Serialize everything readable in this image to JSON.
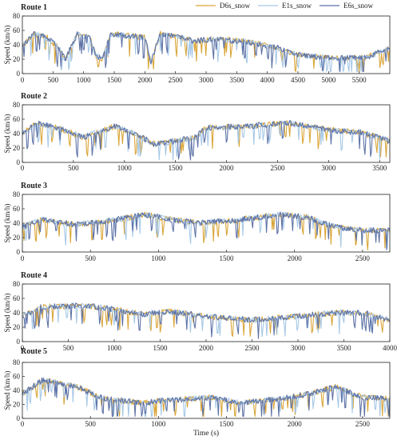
{
  "legend": {
    "placement": "top-right",
    "items": [
      {
        "name": "D6s_snow",
        "color": "#d9a538"
      },
      {
        "name": "E1s_snow",
        "color": "#a7c8e6"
      },
      {
        "name": "E6s_snow",
        "color": "#5d72a6"
      }
    ]
  },
  "xlabel": "Time (s)",
  "chart_data": [
    {
      "type": "line",
      "title": "Route 1",
      "ylabel": "Speed (km/h)",
      "xlim": [
        0,
        6000
      ],
      "ylim": [
        0,
        80
      ],
      "xticks": [
        0,
        500,
        1000,
        1500,
        2000,
        2500,
        3000,
        3500,
        4000,
        4500,
        5000,
        5500
      ],
      "yticks": [
        0,
        20,
        40,
        60,
        80
      ],
      "duration": 6000,
      "profile": [
        [
          0,
          40
        ],
        [
          200,
          55
        ],
        [
          400,
          50
        ],
        [
          600,
          35
        ],
        [
          700,
          20
        ],
        [
          900,
          55
        ],
        [
          1100,
          50
        ],
        [
          1200,
          25
        ],
        [
          1300,
          20
        ],
        [
          1450,
          55
        ],
        [
          2000,
          50
        ],
        [
          2100,
          15
        ],
        [
          2250,
          55
        ],
        [
          2600,
          50
        ],
        [
          2800,
          45
        ],
        [
          3100,
          48
        ],
        [
          3600,
          45
        ],
        [
          4200,
          35
        ],
        [
          4400,
          28
        ],
        [
          4600,
          25
        ],
        [
          5000,
          22
        ],
        [
          5600,
          22
        ],
        [
          6000,
          35
        ]
      ],
      "series": [
        {
          "name": "D6s_snow",
          "color": "#d9a538",
          "seed": 11
        },
        {
          "name": "E1s_snow",
          "color": "#a7c8e6",
          "seed": 23
        },
        {
          "name": "E6s_snow",
          "color": "#5d72a6",
          "seed": 37
        }
      ]
    },
    {
      "type": "line",
      "title": "Route 2",
      "ylabel": "Speed (km/h)",
      "xlim": [
        0,
        3600
      ],
      "ylim": [
        0,
        80
      ],
      "xticks": [
        0,
        500,
        1000,
        1500,
        2000,
        2500,
        3000,
        3500
      ],
      "yticks": [
        0,
        20,
        40,
        60,
        80
      ],
      "duration": 3600,
      "profile": [
        [
          0,
          40
        ],
        [
          150,
          55
        ],
        [
          400,
          45
        ],
        [
          600,
          35
        ],
        [
          900,
          50
        ],
        [
          1100,
          40
        ],
        [
          1300,
          25
        ],
        [
          1700,
          35
        ],
        [
          1800,
          48
        ],
        [
          2200,
          50
        ],
        [
          2600,
          55
        ],
        [
          2800,
          50
        ],
        [
          3000,
          45
        ],
        [
          3300,
          42
        ],
        [
          3600,
          30
        ]
      ],
      "series": [
        {
          "name": "D6s_snow",
          "color": "#d9a538",
          "seed": 51
        },
        {
          "name": "E1s_snow",
          "color": "#a7c8e6",
          "seed": 63
        },
        {
          "name": "E6s_snow",
          "color": "#5d72a6",
          "seed": 77
        }
      ]
    },
    {
      "type": "line",
      "title": "Route 3",
      "ylabel": "Speed (km/h)",
      "xlim": [
        0,
        2700
      ],
      "ylim": [
        0,
        80
      ],
      "xticks": [
        0,
        500,
        1000,
        1500,
        2000,
        2500
      ],
      "yticks": [
        0,
        20,
        40,
        60,
        80
      ],
      "duration": 2700,
      "profile": [
        [
          0,
          35
        ],
        [
          150,
          45
        ],
        [
          400,
          38
        ],
        [
          700,
          45
        ],
        [
          900,
          52
        ],
        [
          1100,
          45
        ],
        [
          1300,
          40
        ],
        [
          1600,
          45
        ],
        [
          1900,
          52
        ],
        [
          2100,
          48
        ],
        [
          2300,
          35
        ],
        [
          2500,
          30
        ],
        [
          2700,
          30
        ]
      ],
      "series": [
        {
          "name": "D6s_snow",
          "color": "#d9a538",
          "seed": 91
        },
        {
          "name": "E1s_snow",
          "color": "#a7c8e6",
          "seed": 103
        },
        {
          "name": "E6s_snow",
          "color": "#5d72a6",
          "seed": 117
        }
      ]
    },
    {
      "type": "line",
      "title": "Route 4",
      "ylabel": "Speed (km/h)",
      "xlim": [
        0,
        4000
      ],
      "ylim": [
        0,
        80
      ],
      "xticks": [
        0,
        500,
        1000,
        1500,
        2000,
        2500,
        3000,
        3500,
        4000
      ],
      "yticks": [
        0,
        20,
        40,
        60,
        80
      ],
      "duration": 4000,
      "profile": [
        [
          0,
          35
        ],
        [
          200,
          48
        ],
        [
          700,
          50
        ],
        [
          1000,
          45
        ],
        [
          1300,
          38
        ],
        [
          1600,
          42
        ],
        [
          2000,
          35
        ],
        [
          2500,
          30
        ],
        [
          3000,
          35
        ],
        [
          3400,
          40
        ],
        [
          3700,
          40
        ],
        [
          4000,
          30
        ]
      ],
      "series": [
        {
          "name": "D6s_snow",
          "color": "#d9a538",
          "seed": 131
        },
        {
          "name": "E1s_snow",
          "color": "#a7c8e6",
          "seed": 143
        },
        {
          "name": "E6s_snow",
          "color": "#5d72a6",
          "seed": 157
        }
      ]
    },
    {
      "type": "line",
      "title": "Route 5",
      "ylabel": "Speed (km/h)",
      "xlim": [
        0,
        2700
      ],
      "ylim": [
        0,
        80
      ],
      "xticks": [
        0,
        500,
        1000,
        1500,
        2000,
        2500
      ],
      "yticks": [
        0,
        20,
        40,
        60,
        80
      ],
      "duration": 2700,
      "profile": [
        [
          0,
          35
        ],
        [
          150,
          55
        ],
        [
          400,
          45
        ],
        [
          600,
          28
        ],
        [
          900,
          22
        ],
        [
          1000,
          25
        ],
        [
          1400,
          30
        ],
        [
          1600,
          22
        ],
        [
          1900,
          28
        ],
        [
          2100,
          35
        ],
        [
          2300,
          45
        ],
        [
          2500,
          30
        ],
        [
          2700,
          28
        ]
      ],
      "series": [
        {
          "name": "D6s_snow",
          "color": "#d9a538",
          "seed": 171
        },
        {
          "name": "E1s_snow",
          "color": "#a7c8e6",
          "seed": 183
        },
        {
          "name": "E6s_snow",
          "color": "#5d72a6",
          "seed": 197
        }
      ]
    }
  ]
}
